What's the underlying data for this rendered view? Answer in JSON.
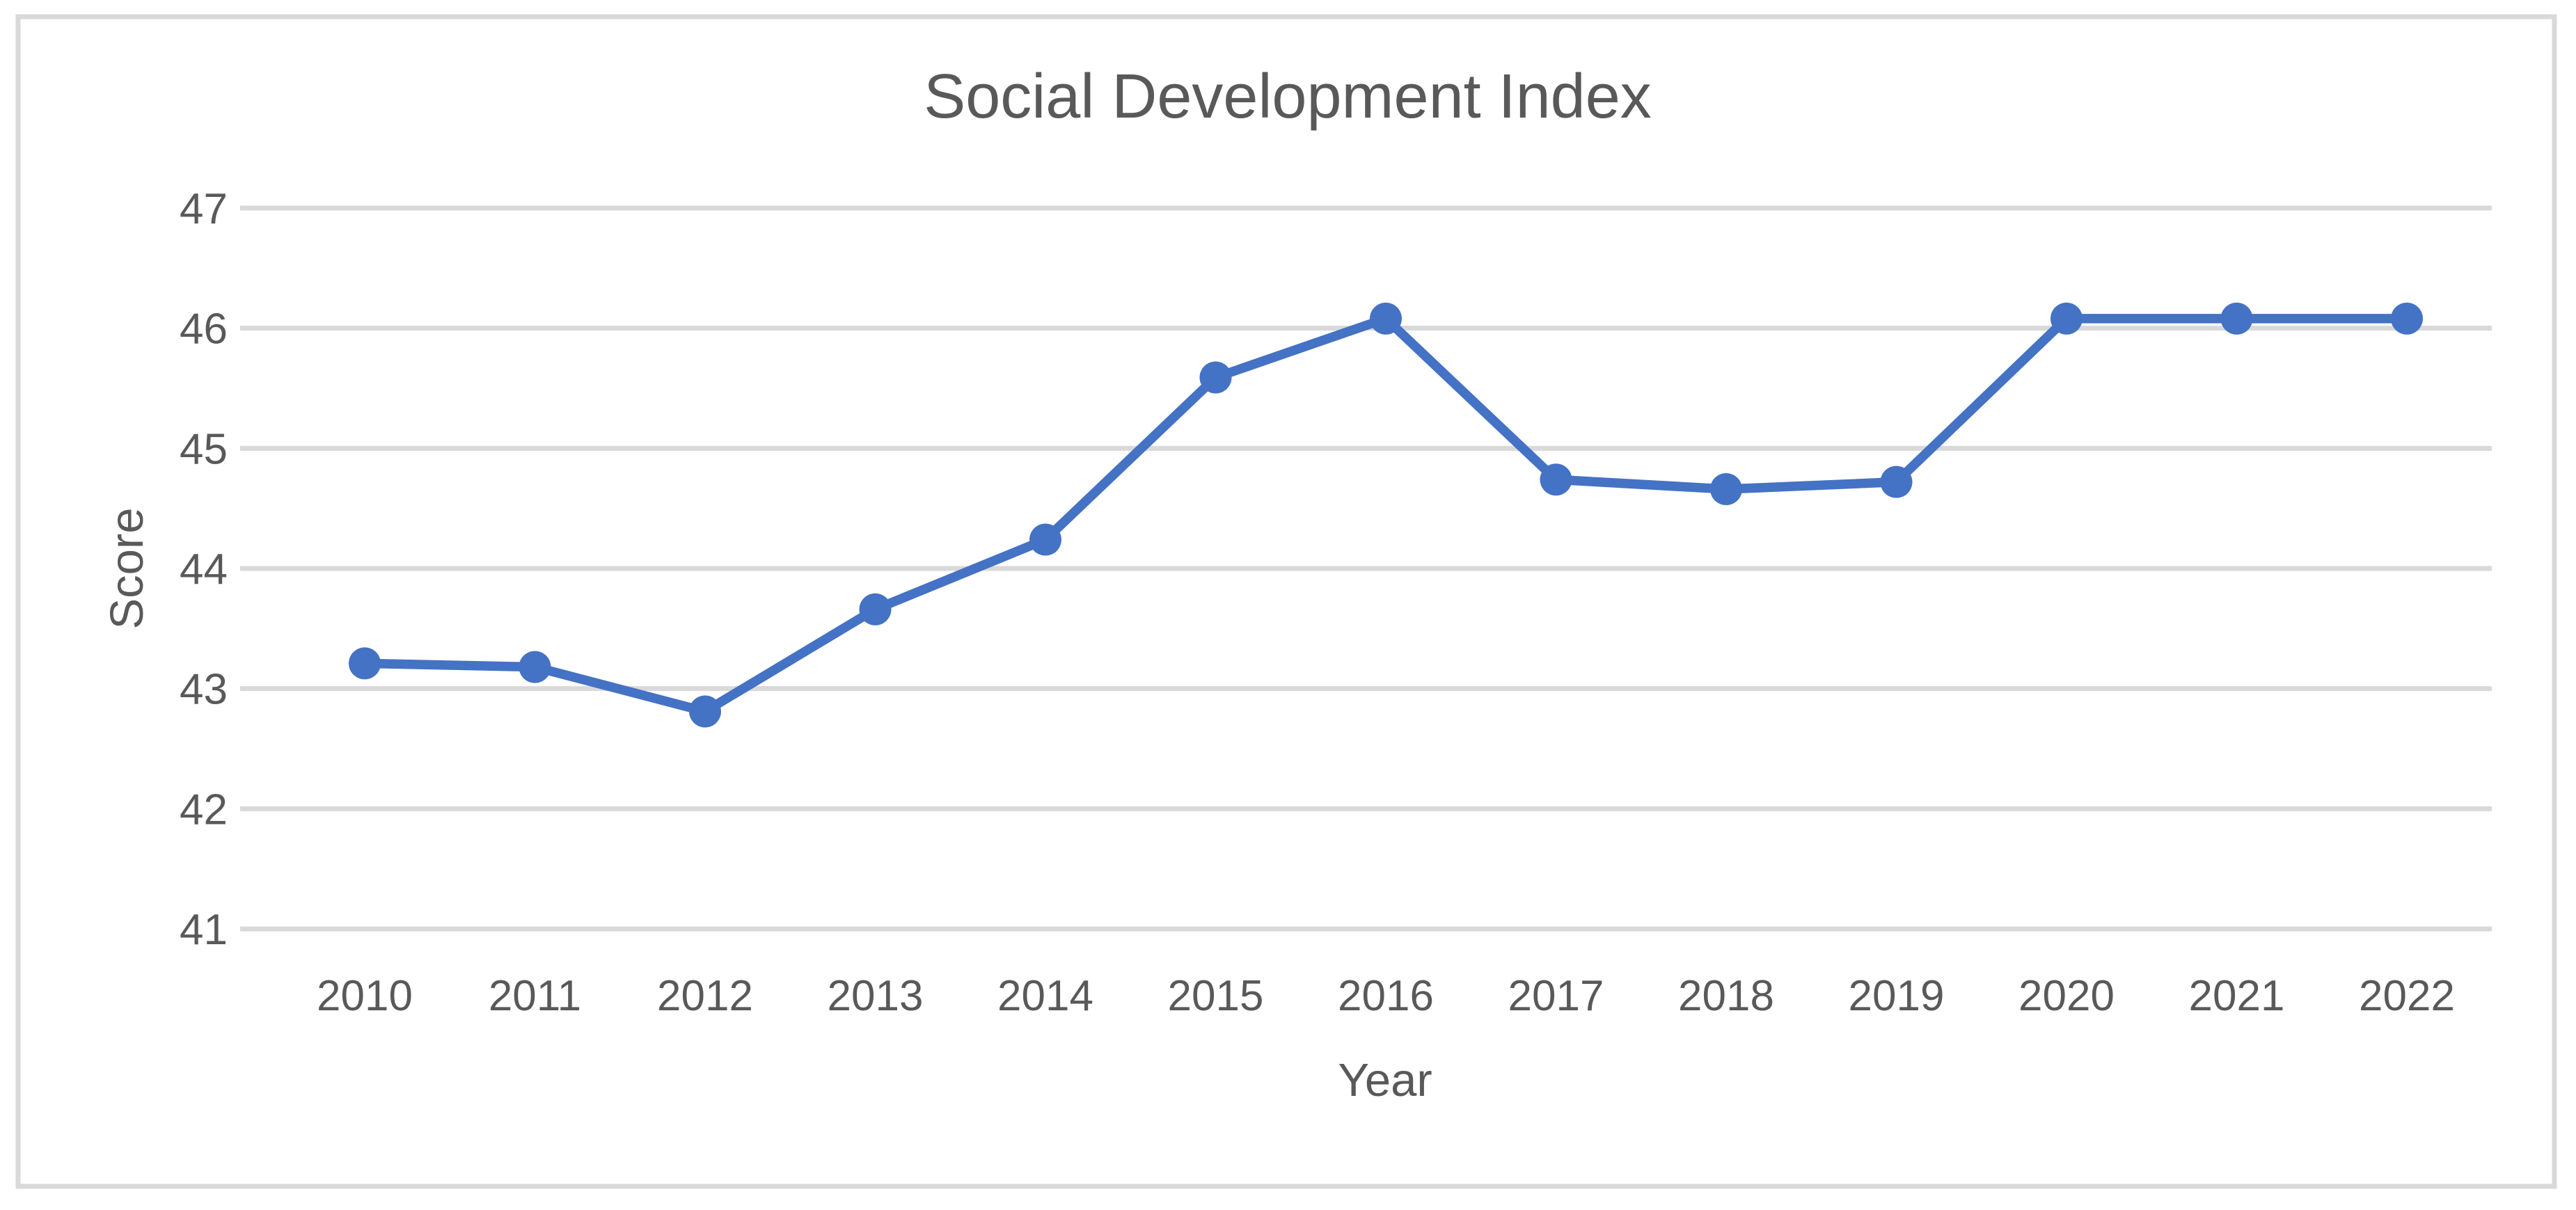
{
  "figure": {
    "background_color": "#FFFFFF",
    "border_color": "#D9D9D9"
  },
  "chart_data": {
    "type": "line",
    "title": "Social Development Index",
    "xlabel": "Year",
    "ylabel": "Score",
    "categories": [
      "2010",
      "2011",
      "2012",
      "2013",
      "2014",
      "2015",
      "2016",
      "2017",
      "2018",
      "2019",
      "2020",
      "2021",
      "2022"
    ],
    "values": [
      43.21,
      43.18,
      42.81,
      43.66,
      44.24,
      45.59,
      46.08,
      44.74,
      44.66,
      44.72,
      46.08,
      46.08,
      46.08
    ],
    "ylim": [
      41,
      47.2
    ],
    "yticks": [
      41,
      42,
      43,
      44,
      45,
      46,
      47
    ],
    "grid": "horizontal",
    "legend_position": "none",
    "line_color": "#4472C4",
    "marker": "circle",
    "grid_color": "#D9D9D9",
    "text_color": "#595959"
  }
}
